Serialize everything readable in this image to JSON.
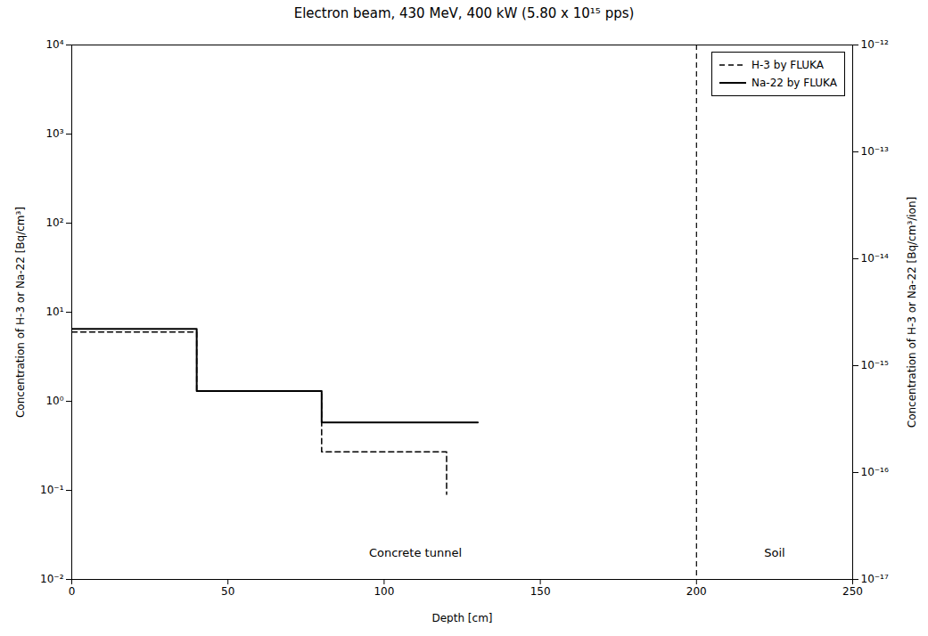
{
  "chart_data": {
    "type": "line",
    "title": "Electron beam, 430 MeV, 400 kW (5.80 x 10¹⁵ pps)",
    "xlabel": "Depth [cm]",
    "ylabel": "Concentration of H-3 or Na-22 [Bq/cm³]",
    "y2label": "Concentration of H-3 or Na-22 [Bq/cm³/ion]",
    "log": "y",
    "grid": false,
    "legend": "upper right",
    "xlim": [
      0,
      250
    ],
    "xticks": [
      0,
      50,
      100,
      150,
      200,
      250
    ],
    "ylim": [
      0.01,
      10000
    ],
    "yticks": [
      {
        "value": 0.01,
        "label": "10⁻²"
      },
      {
        "value": 0.1,
        "label": "10⁻¹"
      },
      {
        "value": 1,
        "label": "10⁰"
      },
      {
        "value": 10,
        "label": "10¹"
      },
      {
        "value": 100,
        "label": "10²"
      },
      {
        "value": 1000,
        "label": "10³"
      },
      {
        "value": 10000,
        "label": "10⁴"
      }
    ],
    "y2lim": [
      1e-17,
      1e-12
    ],
    "y2ticks": [
      {
        "value": 1e-17,
        "label": "10⁻¹⁷"
      },
      {
        "value": 1e-16,
        "label": "10⁻¹⁶"
      },
      {
        "value": 1e-15,
        "label": "10⁻¹⁵"
      },
      {
        "value": 1e-14,
        "label": "10⁻¹⁴"
      },
      {
        "value": 1e-13,
        "label": "10⁻¹³"
      },
      {
        "value": 1e-12,
        "label": "10⁻¹²"
      }
    ],
    "series": [
      {
        "name": "H-3 by FLUKA",
        "color": "black",
        "line_style": "dashed",
        "x": [
          0,
          40,
          40,
          80,
          80,
          120,
          120
        ],
        "values": [
          6.0,
          6.0,
          1.3,
          1.3,
          0.27,
          0.27,
          0.09
        ]
      },
      {
        "name": "Na-22 by FLUKA",
        "color": "black",
        "line_style": "solid",
        "x": [
          0,
          40,
          40,
          80,
          80,
          130
        ],
        "values": [
          6.5,
          6.5,
          1.3,
          1.3,
          0.58,
          0.58
        ]
      }
    ],
    "annotations": [
      {
        "text": "Concrete tunnel",
        "x": 110,
        "y": 0.018
      },
      {
        "text": "Soil",
        "x": 225,
        "y": 0.018
      }
    ],
    "vlines": [
      {
        "x": 200,
        "color": "black",
        "line_style": "dashed"
      }
    ]
  }
}
